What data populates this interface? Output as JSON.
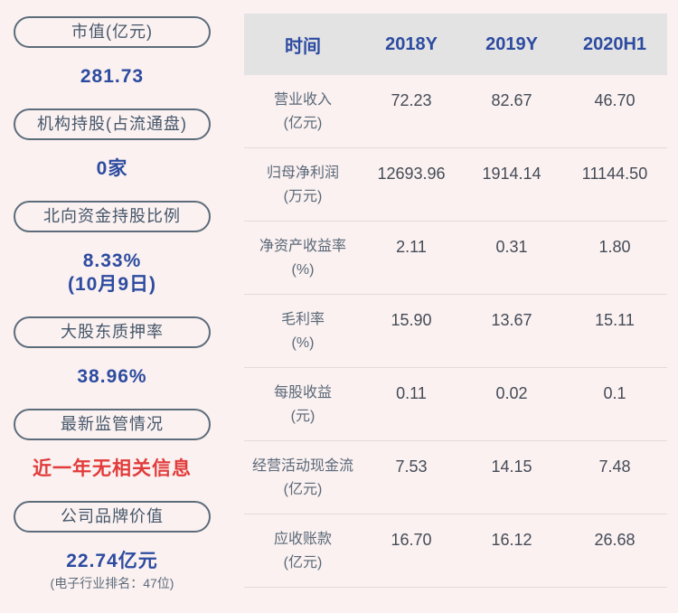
{
  "colors": {
    "page_bg": "#faf1f0",
    "accent_blue": "#2d4ba0",
    "alert_red": "#e23b3b",
    "pill_border": "#5d6c7b",
    "pill_text": "#45566a",
    "table_header_bg": "#e3e3e4",
    "table_label_text": "#5b6878",
    "table_value_text": "#454b57",
    "divider": "#e3dbda",
    "subtext_gray": "#5f6b7c"
  },
  "sidebar": {
    "cards": [
      {
        "label": "市值(亿元)",
        "line1": "281.73"
      },
      {
        "label": "机构持股(占流通盘)",
        "line1": "0家"
      },
      {
        "label": "北向资金持股比例",
        "line1": "8.33%",
        "line2": "(10月9日)"
      },
      {
        "label": "大股东质押率",
        "line1": "38.96%"
      },
      {
        "label": "最新监管情况",
        "line1": "近一年无相关信息"
      },
      {
        "label": "公司品牌价值",
        "line1": "22.74亿元",
        "line2": "(电子行业排名：47位)"
      }
    ]
  },
  "table": {
    "header": [
      "时间",
      "2018Y",
      "2019Y",
      "2020H1"
    ],
    "rows": [
      {
        "label1": "营业收入",
        "label2": "(亿元)",
        "values": [
          "72.23",
          "82.67",
          "46.70"
        ]
      },
      {
        "label1": "归母净利润",
        "label2": "(万元)",
        "values": [
          "12693.96",
          "1914.14",
          "11144.50"
        ]
      },
      {
        "label1": "净资产收益率",
        "label2": "(%)",
        "values": [
          "2.11",
          "0.31",
          "1.80"
        ]
      },
      {
        "label1": "毛利率",
        "label2": "(%)",
        "values": [
          "15.90",
          "13.67",
          "15.11"
        ]
      },
      {
        "label1": "每股收益",
        "label2": "(元)",
        "values": [
          "0.11",
          "0.02",
          "0.1"
        ]
      },
      {
        "label1": "经营活动现金流",
        "label2": "(亿元)",
        "values": [
          "7.53",
          "14.15",
          "7.48"
        ]
      },
      {
        "label1": "应收账款",
        "label2": "(亿元)",
        "values": [
          "16.70",
          "16.12",
          "26.68"
        ]
      }
    ]
  }
}
